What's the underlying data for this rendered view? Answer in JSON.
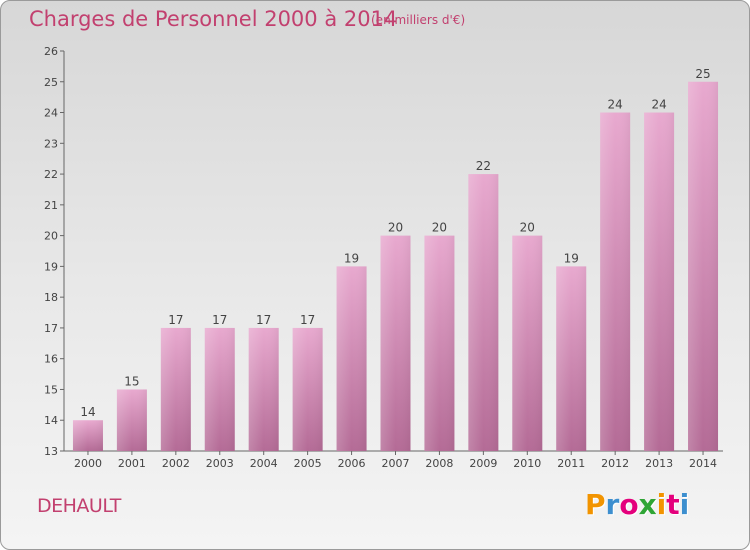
{
  "header": {
    "title": "Charges de Personnel 2000 à 2014",
    "unit": "(en milliers d'€)"
  },
  "footer": {
    "commune": "DEHAULT",
    "logo_text": "Proxiti"
  },
  "colors": {
    "title": "#c2406f",
    "bar_top": "#e8a9cf",
    "bar_bottom": "#b46b96",
    "logo": [
      "#f29400",
      "#3d8fcf",
      "#e4007c",
      "#2fa535",
      "#f29400",
      "#e4007c",
      "#3d8fcf"
    ]
  },
  "chart_data": {
    "type": "bar",
    "title": "Charges de Personnel 2000 à 2014",
    "subtitle": "(en milliers d'€)",
    "categories": [
      "2000",
      "2001",
      "2002",
      "2003",
      "2004",
      "2005",
      "2006",
      "2007",
      "2008",
      "2009",
      "2010",
      "2011",
      "2012",
      "2013",
      "2014"
    ],
    "values": [
      14,
      15,
      17,
      17,
      17,
      17,
      19,
      20,
      20,
      22,
      20,
      19,
      24,
      24,
      25
    ],
    "ylim": [
      13,
      26
    ],
    "yticks": [
      13,
      14,
      15,
      16,
      17,
      18,
      19,
      20,
      21,
      22,
      23,
      24,
      25,
      26
    ],
    "grid": false,
    "legend": "none"
  }
}
